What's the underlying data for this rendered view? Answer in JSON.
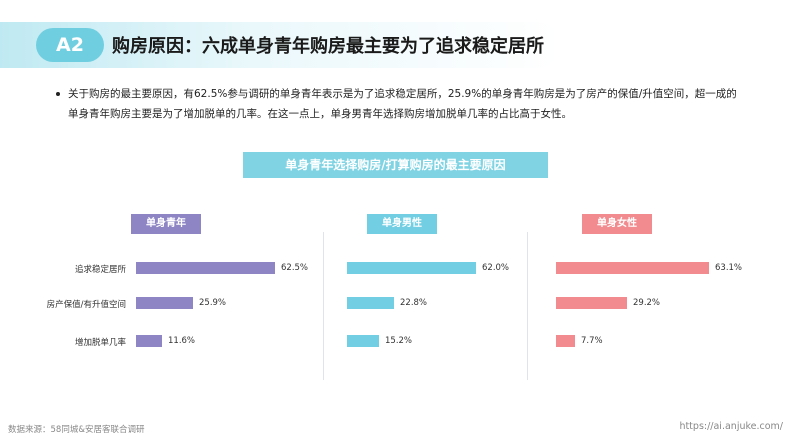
{
  "header": {
    "badge": "A2",
    "title": "购房原因：六成单身青年购房最主要为了追求稳定居所"
  },
  "intro": {
    "text": "关于购房的最主要原因，有62.5%参与调研的单身青年表示是为了追求稳定居所，25.9%的单身青年购房是为了房产的保值/升值空间，超一成的单身青年购房主要是为了增加脱单的几率。在这一点上，单身男青年选择购房增加脱单几率的占比高于女性。"
  },
  "chart_data": {
    "type": "bar",
    "orientation": "horizontal",
    "title": "单身青年选择购房/打算购房的最主要原因",
    "categories": [
      "追求稳定居所",
      "房产保值/有升值空间",
      "增加脱单几率"
    ],
    "unit": "%",
    "xlim": [
      0,
      100
    ],
    "grid": false,
    "series": [
      {
        "name": "单身青年",
        "color": "#8e86c4",
        "values": [
          62.5,
          25.9,
          11.6
        ],
        "labels": [
          "62.5%",
          "25.9%",
          "11.6%"
        ]
      },
      {
        "name": "单身男性",
        "color": "#72cfe3",
        "values": [
          62.0,
          22.8,
          15.2
        ],
        "labels": [
          "62.0%",
          "22.8%",
          "15.2%"
        ]
      },
      {
        "name": "单身女性",
        "color": "#f28b8f",
        "values": [
          63.1,
          29.2,
          7.7
        ],
        "labels": [
          "63.1%",
          "29.2%",
          "7.7%"
        ]
      }
    ]
  },
  "footer": {
    "source": "数据来源：58同城&安居客联合调研",
    "url": "https://ai.anjuke.com/"
  }
}
